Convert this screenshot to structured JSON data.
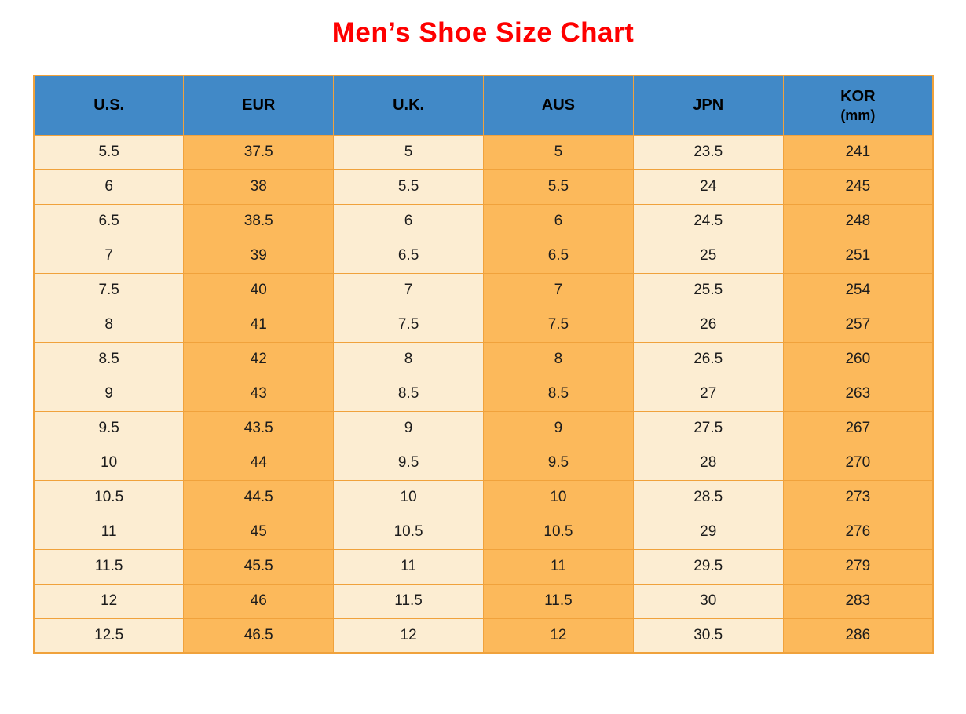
{
  "title": "Men’s Shoe Size Chart",
  "colors": {
    "header_bg": "#4189C7",
    "header_text": "#000000",
    "cream": "#FCEDD2",
    "orange": "#FCB95B",
    "border": "#F0A23C",
    "title": "#FE0000",
    "body_text": "#1C1C1C"
  },
  "table": {
    "header": [
      {
        "label": "U.S.",
        "sub": ""
      },
      {
        "label": "EUR",
        "sub": ""
      },
      {
        "label": "U.K.",
        "sub": ""
      },
      {
        "label": "AUS",
        "sub": ""
      },
      {
        "label": "JPN",
        "sub": ""
      },
      {
        "label": "KOR",
        "sub": "(mm)"
      }
    ],
    "column_shades": [
      "cream",
      "orange",
      "cream",
      "orange",
      "cream",
      "orange"
    ]
  },
  "chart_data": {
    "type": "table",
    "title": "Men’s Shoe Size Chart",
    "columns": [
      "U.S.",
      "EUR",
      "U.K.",
      "AUS",
      "JPN",
      "KOR (mm)"
    ],
    "rows": [
      [
        "5.5",
        "37.5",
        "5",
        "5",
        "23.5",
        "241"
      ],
      [
        "6",
        "38",
        "5.5",
        "5.5",
        "24",
        "245"
      ],
      [
        "6.5",
        "38.5",
        "6",
        "6",
        "24.5",
        "248"
      ],
      [
        "7",
        "39",
        "6.5",
        "6.5",
        "25",
        "251"
      ],
      [
        "7.5",
        "40",
        "7",
        "7",
        "25.5",
        "254"
      ],
      [
        "8",
        "41",
        "7.5",
        "7.5",
        "26",
        "257"
      ],
      [
        "8.5",
        "42",
        "8",
        "8",
        "26.5",
        "260"
      ],
      [
        "9",
        "43",
        "8.5",
        "8.5",
        "27",
        "263"
      ],
      [
        "9.5",
        "43.5",
        "9",
        "9",
        "27.5",
        "267"
      ],
      [
        "10",
        "44",
        "9.5",
        "9.5",
        "28",
        "270"
      ],
      [
        "10.5",
        "44.5",
        "10",
        "10",
        "28.5",
        "273"
      ],
      [
        "11",
        "45",
        "10.5",
        "10.5",
        "29",
        "276"
      ],
      [
        "11.5",
        "45.5",
        "11",
        "11",
        "29.5",
        "279"
      ],
      [
        "12",
        "46",
        "11.5",
        "11.5",
        "30",
        "283"
      ],
      [
        "12.5",
        "46.5",
        "12",
        "12",
        "30.5",
        "286"
      ]
    ]
  }
}
